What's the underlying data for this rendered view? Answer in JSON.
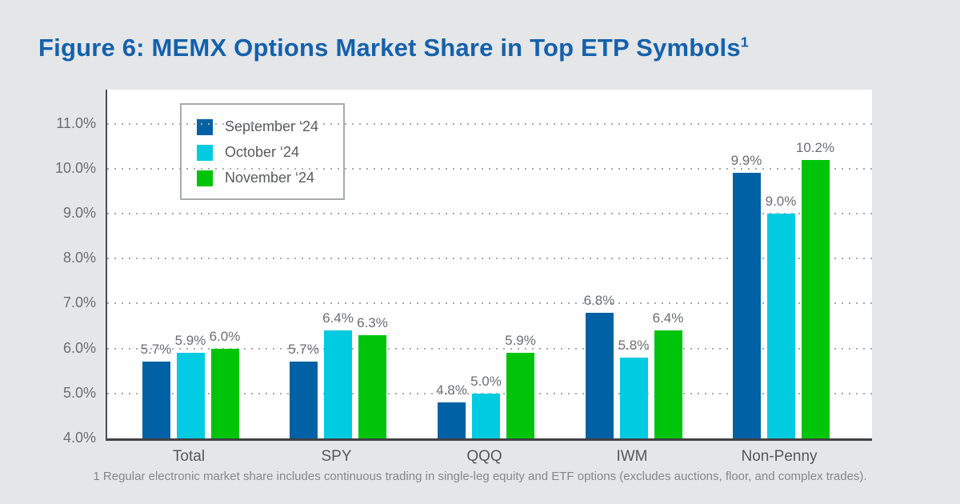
{
  "page": {
    "title": "Figure 6: MEMX Options Market Share in Top ETP Symbols",
    "title_superscript": "1",
    "footnote": "1 Regular electronic market share includes continuous trading in single-leg equity and ETF options (excludes auctions, floor, and complex trades)."
  },
  "colors": {
    "background": "#e4e6e8",
    "title": "#1561ab",
    "september": "#0061a5",
    "october": "#00cbe0",
    "november": "#00c40a",
    "axis": "#4b4c4e",
    "gridline": "#aaacae",
    "bar_label_text": "#6d6e71",
    "y_tick_text": "#6d6e71",
    "category_text": "#565759",
    "legend_border": "#a8aaad"
  },
  "chart_data": {
    "type": "bar",
    "title": "Figure 6: MEMX Options Market Share in Top ETP Symbols",
    "categories": [
      "Total",
      "SPY",
      "QQQ",
      "IWM",
      "Non-Penny"
    ],
    "series": [
      {
        "name": "September ‘24",
        "color_key": "september",
        "values": [
          5.7,
          5.7,
          4.8,
          6.8,
          9.9
        ]
      },
      {
        "name": "October ‘24",
        "color_key": "october",
        "values": [
          5.9,
          6.4,
          5.0,
          5.8,
          9.0
        ]
      },
      {
        "name": "November ‘24",
        "color_key": "november",
        "values": [
          6.0,
          6.3,
          5.9,
          6.4,
          10.2
        ]
      }
    ],
    "value_suffix": "%",
    "data_labels": [
      "5.7%",
      "5.9%",
      "6.0%",
      "5.7%",
      "6.4%",
      "6.3%",
      "4.8%",
      "5.0%",
      "5.9%",
      "6.8%",
      "5.8%",
      "6.4%",
      "9.9%",
      "9.0%",
      "10.2%"
    ],
    "xlabel": "",
    "ylabel": "",
    "y_ticks": [
      "11.0%",
      "10.0%",
      "9.0%",
      "8.0%",
      "7.0%",
      "6.0%",
      "5.0%",
      "4.0%"
    ],
    "ylim": [
      4.0,
      11.76
    ],
    "grid": "horizontal-dotted",
    "legend_position": "top-left-inside"
  }
}
